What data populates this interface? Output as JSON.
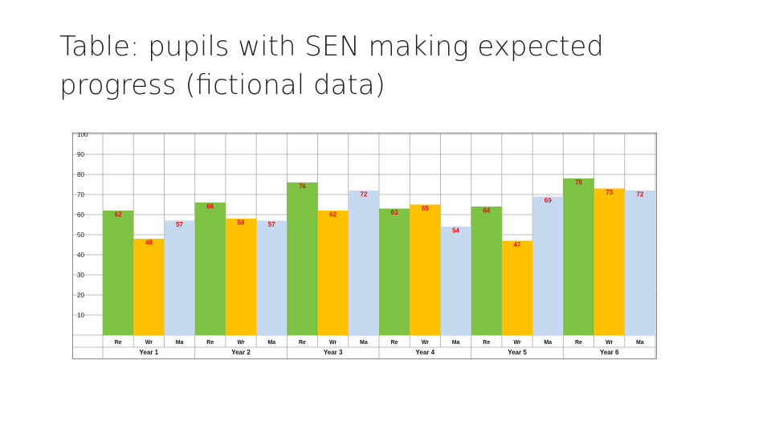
{
  "slide": {
    "title": "Table: pupils with SEN making expected progress (fictional data)"
  },
  "chart_data": {
    "type": "bar",
    "title": "",
    "xlabel": "",
    "ylabel": "",
    "ylim": [
      0,
      100
    ],
    "yticks": [
      10,
      20,
      30,
      40,
      50,
      60,
      70,
      80,
      90,
      100
    ],
    "grid": true,
    "groups": [
      {
        "label": "Year 1",
        "values": [
          62,
          48,
          57
        ]
      },
      {
        "label": "Year 2",
        "values": [
          66,
          58,
          57
        ]
      },
      {
        "label": "Year 3",
        "values": [
          76,
          62,
          72
        ]
      },
      {
        "label": "Year 4",
        "values": [
          63,
          65,
          54
        ]
      },
      {
        "label": "Year 5",
        "values": [
          64,
          47,
          69
        ]
      },
      {
        "label": "Year 6",
        "values": [
          78,
          73,
          72
        ]
      }
    ],
    "subcategories": [
      "Re",
      "Wr",
      "Ma"
    ],
    "colors": [
      "#7dc242",
      "#ffc000",
      "#c5d9f1"
    ]
  }
}
